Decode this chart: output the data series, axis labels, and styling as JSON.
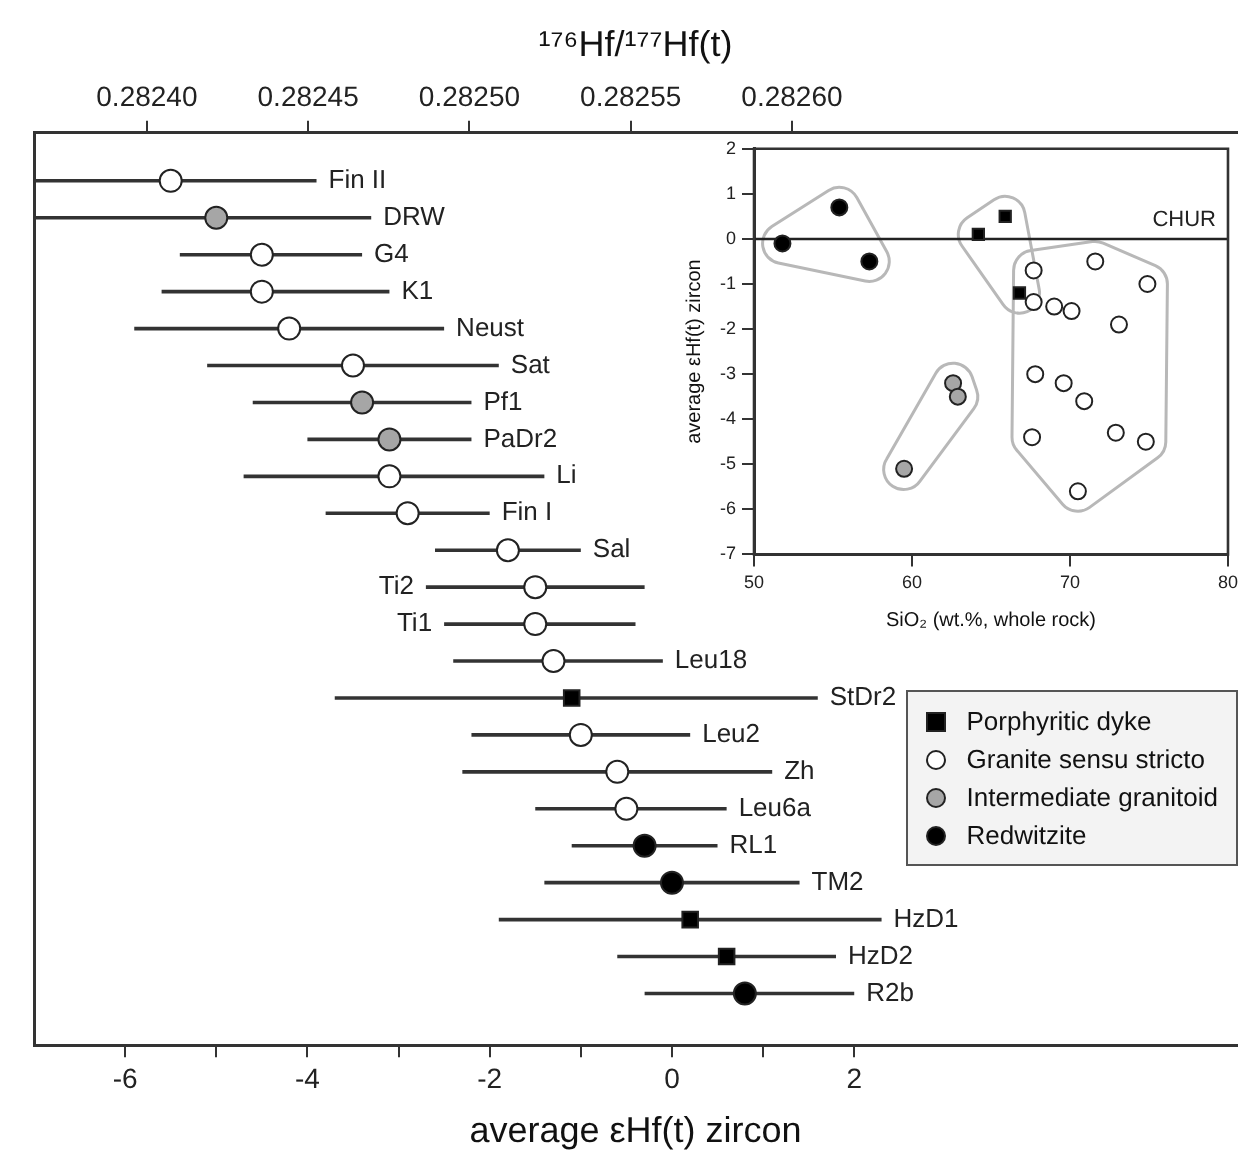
{
  "chart_data": [
    {
      "type": "scatter",
      "orientation": "horizontal",
      "xlabel": "average εHf(t) zircon",
      "x2label": "¹⁷⁶Hf/¹⁷⁷Hf(t)",
      "categories": [
        "Fin II",
        "DRW",
        "G4",
        "K1",
        "Neust",
        "Sat",
        "Pf1",
        "PaDr2",
        "Li",
        "Fin I",
        "Sal",
        "Ti2",
        "Ti1",
        "Leu18",
        "StDr2",
        "Leu2",
        "Zh",
        "Leu6a",
        "RL1",
        "TM2",
        "HzD1",
        "HzD2",
        "R2b"
      ],
      "xlim": [
        -7.0,
        6.2
      ],
      "xticks": [
        -6,
        {
          "value": -5,
          "label": null
        },
        -4,
        {
          "value": -3,
          "label": null
        },
        -2,
        {
          "value": -1,
          "label": null
        },
        0,
        {
          "value": 1,
          "label": null
        },
        2
      ],
      "x2lim": [
        0.282365,
        0.282738
      ],
      "x2ticks": [
        {
          "value": 0.2824,
          "label": "0.28240"
        },
        {
          "value": 0.28245,
          "label": "0.28245"
        },
        {
          "value": 0.2825,
          "label": "0.28250"
        },
        {
          "value": 0.28255,
          "label": "0.28255"
        },
        {
          "value": 0.2826,
          "label": "0.28260"
        }
      ],
      "legend": "right",
      "series": [
        {
          "name": "Porphyritic dyke",
          "color": "#000000",
          "marker": "square",
          "values": [
            null,
            null,
            null,
            null,
            null,
            null,
            null,
            null,
            null,
            null,
            null,
            null,
            null,
            null,
            -1.1,
            null,
            null,
            null,
            null,
            null,
            0.2,
            0.6,
            null
          ],
          "errors": [
            null,
            null,
            null,
            null,
            null,
            null,
            null,
            null,
            null,
            null,
            null,
            null,
            null,
            null,
            [
              -3.7,
              1.6
            ],
            null,
            null,
            null,
            null,
            null,
            [
              -1.9,
              2.3
            ],
            [
              -0.6,
              1.8
            ],
            null
          ]
        },
        {
          "name": "Granite sensu stricto",
          "color": "#ffffff",
          "marker": "circle",
          "values": [
            -5.5,
            null,
            -4.5,
            -4.5,
            -4.2,
            -3.5,
            null,
            null,
            -3.1,
            -2.9,
            -1.8,
            -1.5,
            -1.5,
            -1.3,
            null,
            -1.0,
            -0.6,
            -0.5,
            null,
            null,
            null,
            null,
            null
          ],
          "errors": [
            [
              -7.0,
              -3.9
            ],
            null,
            [
              -5.4,
              -3.4
            ],
            [
              -5.6,
              -3.1
            ],
            [
              -5.9,
              -2.5
            ],
            [
              -5.1,
              -1.9
            ],
            null,
            null,
            [
              -4.7,
              -1.4
            ],
            [
              -3.8,
              -2.0
            ],
            [
              -2.6,
              -1.0
            ],
            [
              -2.7,
              -0.3
            ],
            [
              -2.5,
              -0.4
            ],
            [
              -2.4,
              -0.1
            ],
            null,
            [
              -2.2,
              0.2
            ],
            [
              -2.3,
              1.1
            ],
            [
              -1.5,
              0.6
            ],
            null,
            null,
            null,
            null,
            null
          ]
        },
        {
          "name": "Intermediate granitoid",
          "color": "#a6a6a6",
          "marker": "circle",
          "values": [
            null,
            -5.0,
            null,
            null,
            null,
            null,
            -3.4,
            -3.1,
            null,
            null,
            null,
            null,
            null,
            null,
            null,
            null,
            null,
            null,
            null,
            null,
            null,
            null,
            null
          ],
          "errors": [
            null,
            [
              -7.0,
              -3.3
            ],
            null,
            null,
            null,
            null,
            [
              -4.6,
              -2.2
            ],
            [
              -4.0,
              -2.2
            ],
            null,
            null,
            null,
            null,
            null,
            null,
            null,
            null,
            null,
            null,
            null,
            null,
            null,
            null,
            null
          ]
        },
        {
          "name": "Redwitzite",
          "color": "#000000",
          "marker": "circle",
          "values": [
            null,
            null,
            null,
            null,
            null,
            null,
            null,
            null,
            null,
            null,
            null,
            null,
            null,
            null,
            null,
            null,
            null,
            null,
            -0.3,
            0.0,
            null,
            null,
            0.8
          ],
          "errors": [
            null,
            null,
            null,
            null,
            null,
            null,
            null,
            null,
            null,
            null,
            null,
            null,
            null,
            null,
            null,
            null,
            null,
            null,
            [
              -1.1,
              0.5
            ],
            [
              -1.4,
              1.4
            ],
            null,
            null,
            [
              -0.3,
              2.0
            ]
          ]
        }
      ]
    },
    {
      "type": "scatter",
      "xlabel": "SiO₂ (wt.%, whole rock)",
      "ylabel": "average εHf(t) zircon",
      "xlim": [
        50,
        80
      ],
      "xticks": [
        50,
        60,
        70,
        80
      ],
      "ylim": [
        -7,
        2
      ],
      "yticks": [
        -7,
        -6,
        -5,
        -4,
        -3,
        -2,
        -1,
        0,
        1,
        2
      ],
      "ref_lines": [
        {
          "axis": "y",
          "value": 0,
          "label": "CHUR"
        }
      ],
      "series": [
        {
          "color": "#000000",
          "marker": "square",
          "x": [
            64.2,
            65.9,
            66.8
          ],
          "values": [
            0.1,
            0.5,
            -1.2
          ]
        },
        {
          "color": "#ffffff",
          "marker": "circle",
          "x": [
            67.7,
            67.7,
            69.0,
            70.1,
            71.6,
            74.9,
            73.1,
            67.8,
            69.6,
            70.9,
            67.6,
            72.9,
            74.8,
            70.5
          ],
          "values": [
            -0.7,
            -1.4,
            -1.5,
            -1.6,
            -0.5,
            -1.0,
            -1.9,
            -3.0,
            -3.2,
            -3.6,
            -4.4,
            -4.3,
            -4.5,
            -5.6
          ]
        },
        {
          "color": "#a6a6a6",
          "marker": "circle",
          "x": [
            59.5,
            62.6,
            62.9
          ],
          "values": [
            -5.1,
            -3.2,
            -3.5
          ]
        },
        {
          "color": "#000000",
          "marker": "circle",
          "x": [
            51.8,
            55.4,
            57.3
          ],
          "values": [
            -0.1,
            0.7,
            -0.5
          ]
        }
      ]
    }
  ]
}
